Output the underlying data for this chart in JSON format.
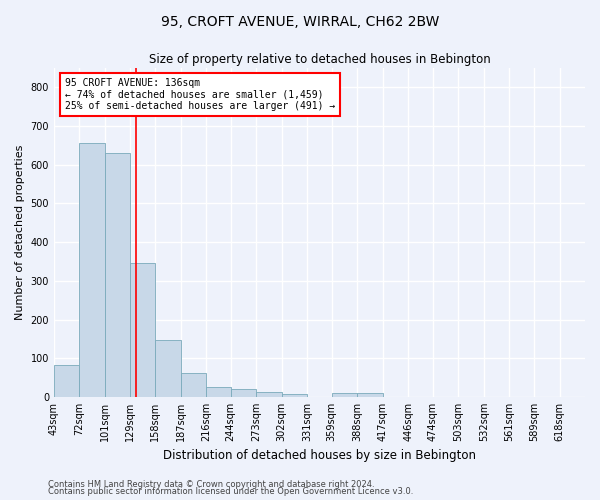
{
  "title": "95, CROFT AVENUE, WIRRAL, CH62 2BW",
  "subtitle": "Size of property relative to detached houses in Bebington",
  "xlabel": "Distribution of detached houses by size in Bebington",
  "ylabel": "Number of detached properties",
  "bin_labels": [
    "43sqm",
    "72sqm",
    "101sqm",
    "129sqm",
    "158sqm",
    "187sqm",
    "216sqm",
    "244sqm",
    "273sqm",
    "302sqm",
    "331sqm",
    "359sqm",
    "388sqm",
    "417sqm",
    "446sqm",
    "474sqm",
    "503sqm",
    "532sqm",
    "561sqm",
    "589sqm",
    "618sqm"
  ],
  "bar_values": [
    82,
    656,
    630,
    347,
    148,
    62,
    25,
    20,
    12,
    8,
    0,
    10,
    10,
    0,
    0,
    0,
    0,
    0,
    0,
    0,
    0
  ],
  "bar_color": "#c8d8e8",
  "bar_edge_color": "#7aaabb",
  "annotation_line1": "95 CROFT AVENUE: 136sqm",
  "annotation_line2": "← 74% of detached houses are smaller (1,459)",
  "annotation_line3": "25% of semi-detached houses are larger (491) →",
  "annotation_box_color": "white",
  "annotation_box_edge": "red",
  "vline_color": "red",
  "vline_x": 136,
  "ylim": [
    0,
    850
  ],
  "yticks": [
    0,
    100,
    200,
    300,
    400,
    500,
    600,
    700,
    800
  ],
  "footer_line1": "Contains HM Land Registry data © Crown copyright and database right 2024.",
  "footer_line2": "Contains public sector information licensed under the Open Government Licence v3.0.",
  "bg_color": "#eef2fb",
  "grid_color": "white",
  "bin_edges": [
    43,
    72,
    101,
    129,
    158,
    187,
    216,
    244,
    273,
    302,
    331,
    359,
    388,
    417,
    446,
    474,
    503,
    532,
    561,
    589,
    618,
    647
  ],
  "title_fontsize": 10,
  "subtitle_fontsize": 8.5,
  "ylabel_fontsize": 8,
  "xlabel_fontsize": 8.5,
  "tick_fontsize": 7,
  "annotation_fontsize": 7,
  "footer_fontsize": 6
}
